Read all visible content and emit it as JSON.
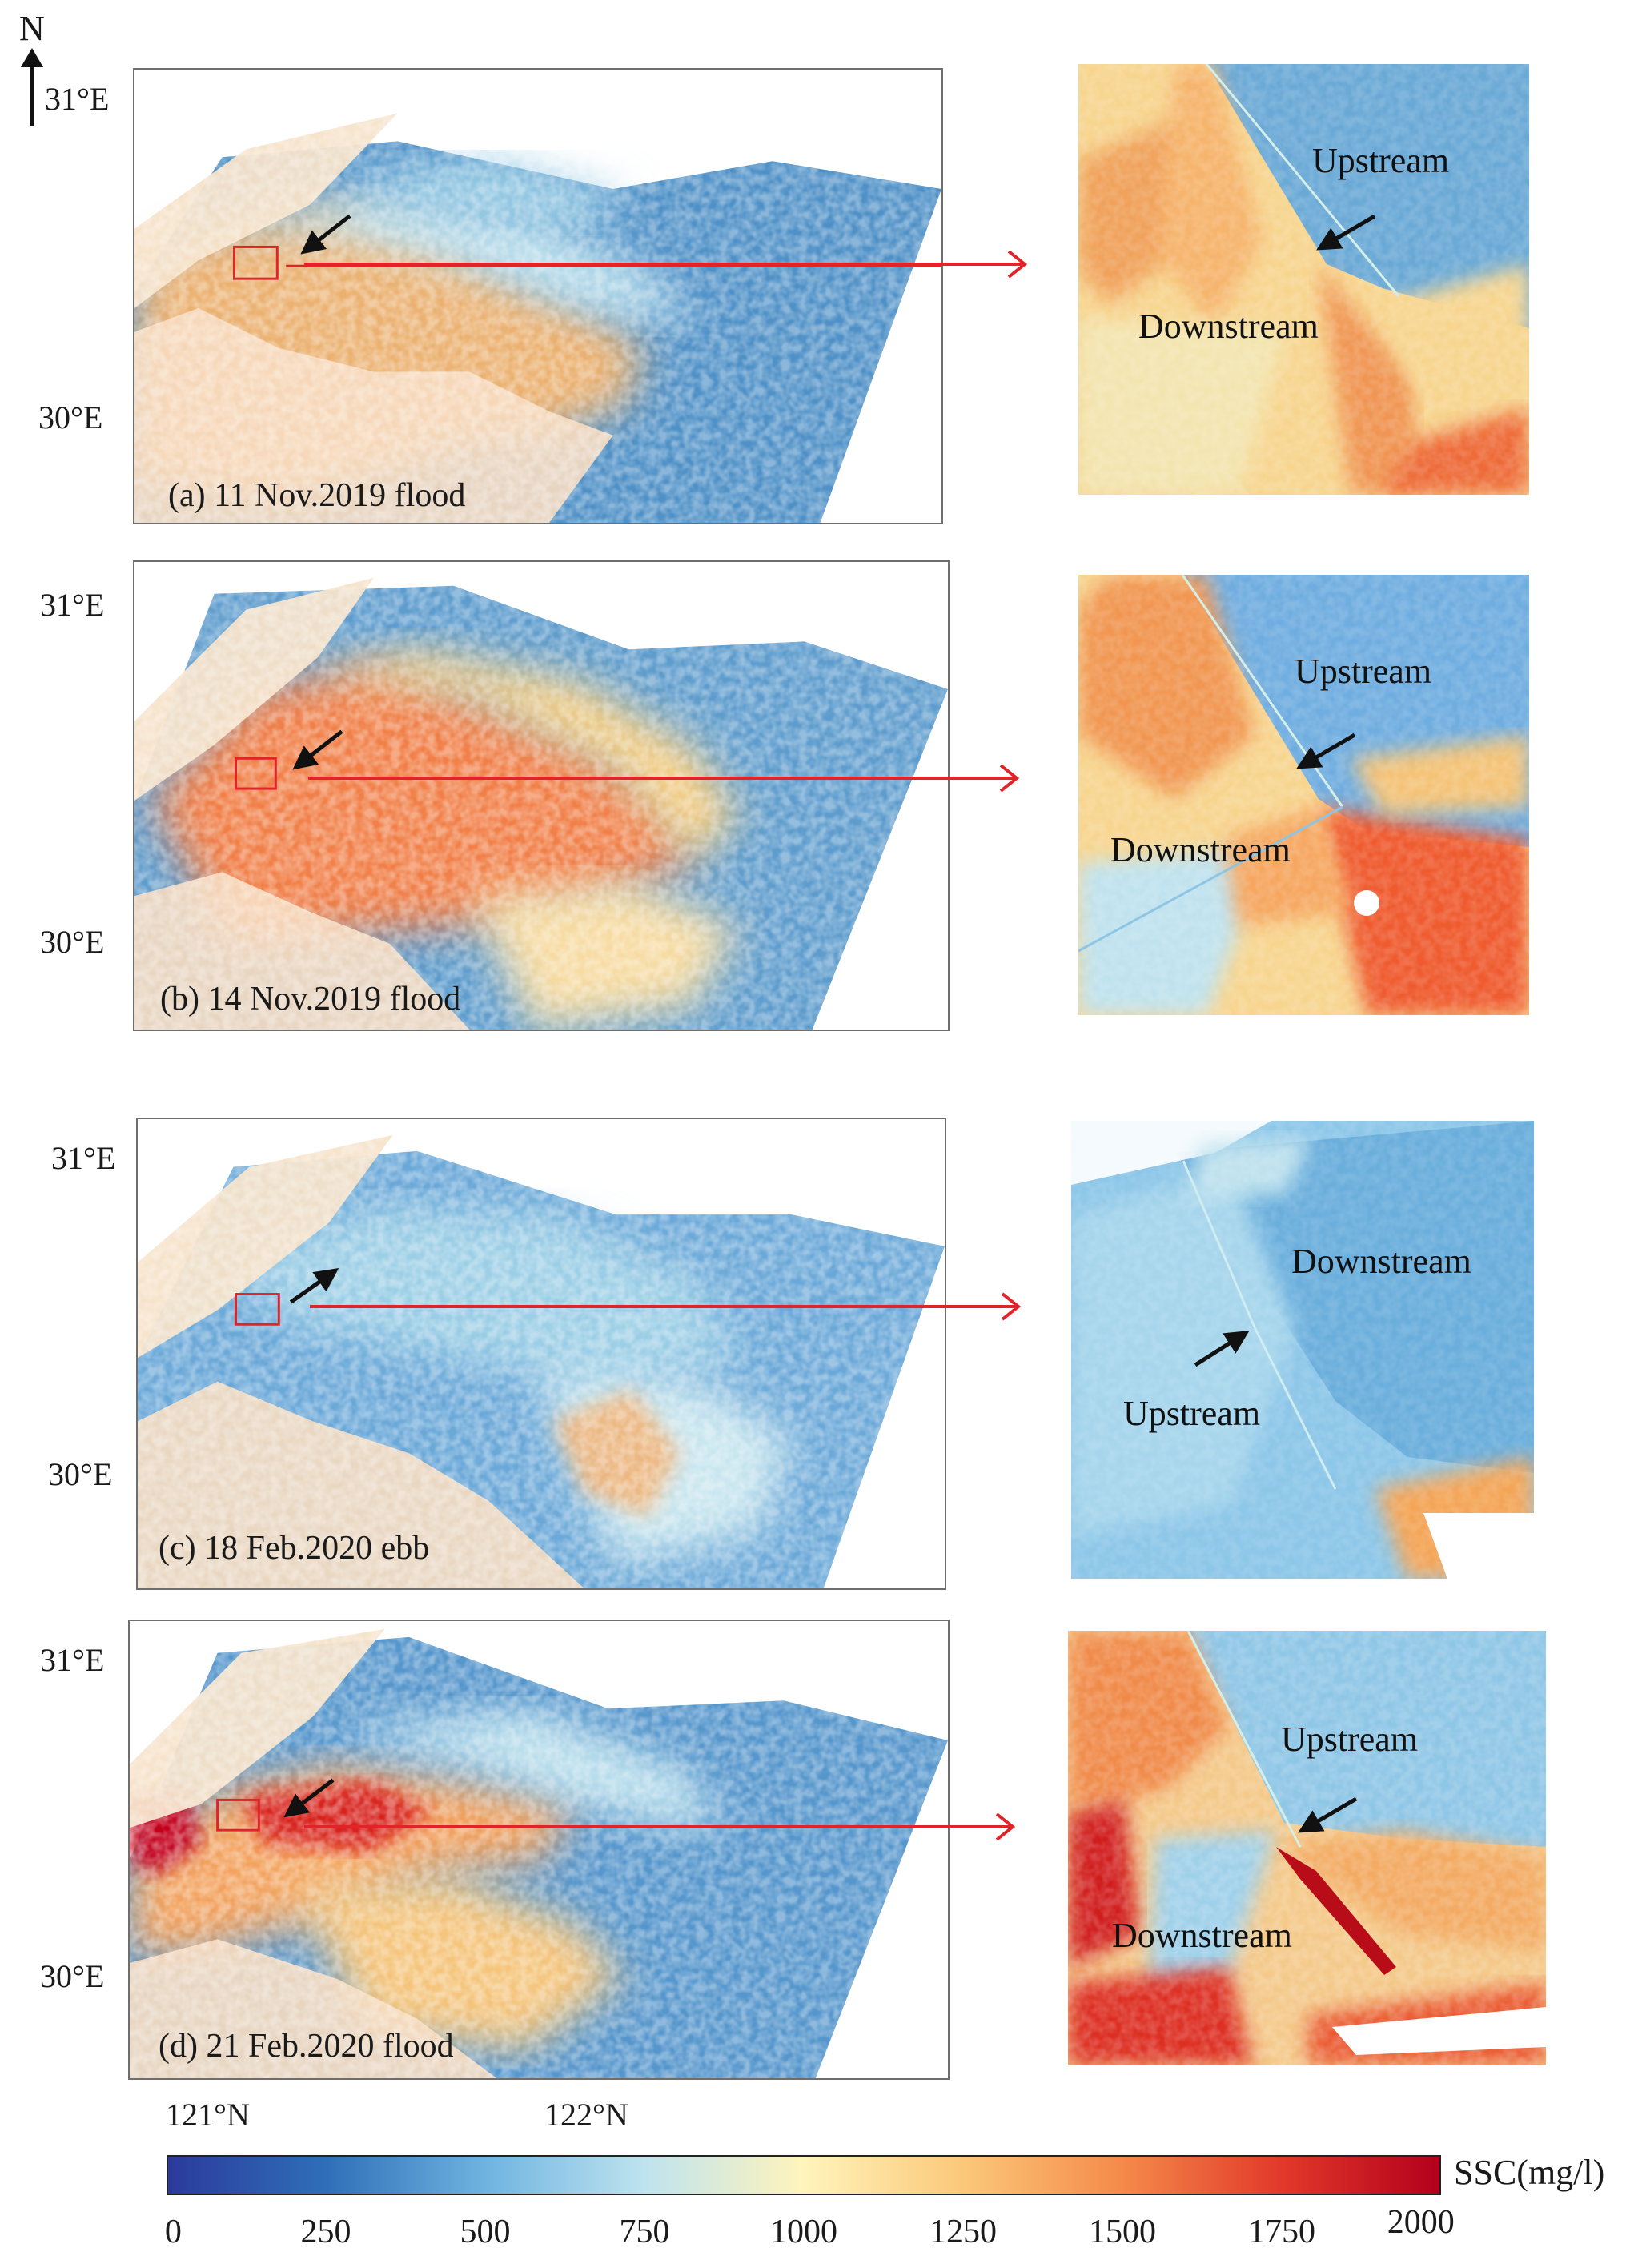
{
  "north_arrow": {
    "label": "N"
  },
  "colorbar": {
    "title": "SSC(mg/l)",
    "min": 0,
    "max": 2000,
    "ticks": [
      "0",
      "250",
      "500",
      "750",
      "1000",
      "1250",
      "1500",
      "1750",
      "2000"
    ],
    "colors": [
      "#2b3a9c",
      "#2f6fb8",
      "#6fb4e0",
      "#bfe3ef",
      "#fff4bc",
      "#fbc87a",
      "#f58a4a",
      "#e2392a",
      "#b3001c"
    ]
  },
  "longitude_labels": [
    "121°N",
    "122°N"
  ],
  "panels": [
    {
      "caption": "(a) 11 Nov.2019 flood",
      "lat_top": "31°E",
      "lat_bottom": "30°E",
      "tide": "flood",
      "zoom_labels": {
        "upstream": "Upstream",
        "downstream": "Downstream"
      }
    },
    {
      "caption": "(b) 14 Nov.2019 flood",
      "lat_top": "31°E",
      "lat_bottom": "30°E",
      "tide": "flood",
      "zoom_labels": {
        "upstream": "Upstream",
        "downstream": "Downstream"
      }
    },
    {
      "caption": "(c) 18 Feb.2020 ebb",
      "lat_top": "31°E",
      "lat_bottom": "30°E",
      "tide": "ebb",
      "zoom_labels": {
        "upstream": "Upstream",
        "downstream": "Downstream"
      }
    },
    {
      "caption": "(d) 21 Feb.2020 flood",
      "lat_top": "31°E",
      "lat_bottom": "30°E",
      "tide": "flood",
      "zoom_labels": {
        "upstream": "Upstream",
        "downstream": "Downstream"
      }
    }
  ]
}
